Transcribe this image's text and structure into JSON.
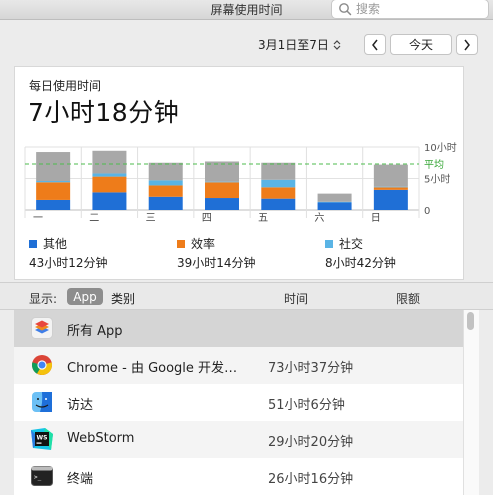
{
  "window": {
    "title": "屏幕使用时间",
    "search_placeholder": "搜索"
  },
  "datenav": {
    "range": "3月1日至7日",
    "prev": "<",
    "today": "今天",
    "next": ">"
  },
  "summary": {
    "label": "每日使用时间",
    "total": "7小时18分钟"
  },
  "chart_data": {
    "type": "bar",
    "stacked": true,
    "categories": [
      "一",
      "二",
      "三",
      "四",
      "五",
      "六",
      "日"
    ],
    "y_ticks": [
      "10小时",
      "5小时",
      "0"
    ],
    "ylim": [
      0,
      10
    ],
    "average": 7.3,
    "average_label": "平均",
    "series": [
      {
        "name": "其他",
        "color": "#1f6fd6",
        "values": [
          1.6,
          2.8,
          2.1,
          1.9,
          1.8,
          1.2,
          3.2
        ]
      },
      {
        "name": "效率",
        "color": "#ee7c1a",
        "values": [
          2.8,
          2.5,
          1.8,
          2.5,
          1.8,
          0,
          0.4
        ]
      },
      {
        "name": "社交",
        "color": "#5ab4e5",
        "values": [
          0.2,
          0.5,
          0.8,
          0.1,
          1.2,
          0.1,
          0.1
        ]
      },
      {
        "name": "",
        "color": "#a8a8a8",
        "values": [
          4.6,
          3.6,
          2.8,
          3.2,
          2.7,
          1.3,
          3.5
        ]
      }
    ]
  },
  "legend": [
    {
      "name": "其他",
      "color": "#1f6fd6",
      "total": "43小时12分钟"
    },
    {
      "name": "效率",
      "color": "#ee7c1a",
      "total": "39小时14分钟"
    },
    {
      "name": "社交",
      "color": "#5ab4e5",
      "total": "8小时42分钟"
    }
  ],
  "table": {
    "show_label": "显示:",
    "seg_app": "App",
    "seg_category": "类别",
    "col_time": "时间",
    "col_limit": "限额",
    "rows": [
      {
        "icon": "all-apps-icon",
        "name": "所有 App",
        "time": ""
      },
      {
        "icon": "chrome-icon",
        "name": "Chrome - 由 Google 开发的…",
        "time": "73小时37分钟"
      },
      {
        "icon": "finder-icon",
        "name": "访达",
        "time": "51小时6分钟"
      },
      {
        "icon": "webstorm-icon",
        "name": "WebStorm",
        "time": "29小时20分钟"
      },
      {
        "icon": "terminal-icon",
        "name": "终端",
        "time": "26小时16分钟"
      }
    ]
  }
}
